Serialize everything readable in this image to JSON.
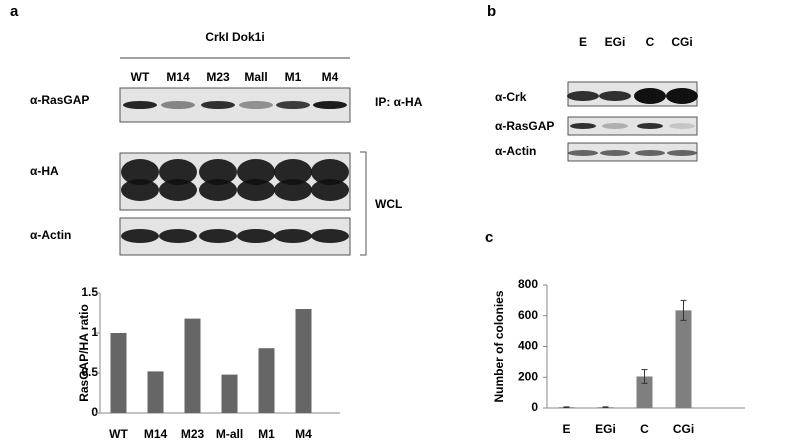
{
  "panel_labels": [
    "a",
    "b",
    "c"
  ],
  "blot_a": {
    "title": "CrkI Dok1i",
    "lanes": [
      "WT",
      "M14",
      "M23",
      "Mall",
      "M1",
      "M4"
    ],
    "rows": [
      "α-RasGAP",
      "α-HA",
      "α-Actin"
    ],
    "ip_label": "IP: α-HA",
    "wcl_label": "WCL"
  },
  "blot_b": {
    "lanes": [
      "E",
      "EGi",
      "C",
      "CGi"
    ],
    "rows": [
      "α-Crk",
      "α-RasGAP",
      "α-Actin"
    ]
  },
  "chart_data": [
    {
      "type": "bar",
      "y_label": "RasGAP/HA ratio",
      "categories": [
        "WT",
        "M14",
        "M23",
        "M-all",
        "M1",
        "M4"
      ],
      "values": [
        1.0,
        0.52,
        1.18,
        0.48,
        0.81,
        1.3
      ],
      "color": "#666666",
      "ylim": [
        0,
        1.5
      ],
      "yticks": [
        0,
        0.5,
        1,
        1.5
      ]
    },
    {
      "type": "bar",
      "y_label": "Number of colonies",
      "categories": [
        "E",
        "EGi",
        "C",
        "CGi"
      ],
      "values": [
        5,
        5,
        205,
        635
      ],
      "errors": [
        2,
        2,
        45,
        65
      ],
      "color": "#7f7f7f",
      "ylim": [
        0,
        800
      ],
      "yticks": [
        0,
        200,
        400,
        600,
        800
      ]
    }
  ]
}
